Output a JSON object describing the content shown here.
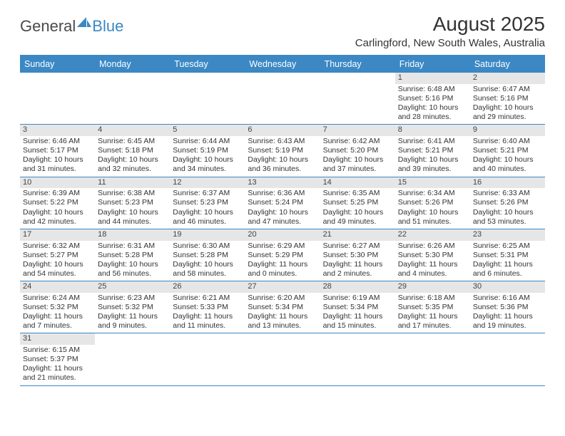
{
  "brand": {
    "part1": "General",
    "part2": "Blue",
    "logo_color": "#3b88c4",
    "text_color": "#4a4a4a"
  },
  "title": "August 2025",
  "location": "Carlingford, New South Wales, Australia",
  "colors": {
    "header_bg": "#3b88c4",
    "header_text": "#ffffff",
    "border": "#3b88c4",
    "daynum_bg": "#e6e6e6",
    "text": "#333333"
  },
  "day_headers": [
    "Sunday",
    "Monday",
    "Tuesday",
    "Wednesday",
    "Thursday",
    "Friday",
    "Saturday"
  ],
  "weeks": [
    [
      {
        "empty": true
      },
      {
        "empty": true
      },
      {
        "empty": true
      },
      {
        "empty": true
      },
      {
        "empty": true
      },
      {
        "n": "1",
        "sunrise": "Sunrise: 6:48 AM",
        "sunset": "Sunset: 5:16 PM",
        "day1": "Daylight: 10 hours",
        "day2": "and 28 minutes."
      },
      {
        "n": "2",
        "sunrise": "Sunrise: 6:47 AM",
        "sunset": "Sunset: 5:16 PM",
        "day1": "Daylight: 10 hours",
        "day2": "and 29 minutes."
      }
    ],
    [
      {
        "n": "3",
        "sunrise": "Sunrise: 6:46 AM",
        "sunset": "Sunset: 5:17 PM",
        "day1": "Daylight: 10 hours",
        "day2": "and 31 minutes."
      },
      {
        "n": "4",
        "sunrise": "Sunrise: 6:45 AM",
        "sunset": "Sunset: 5:18 PM",
        "day1": "Daylight: 10 hours",
        "day2": "and 32 minutes."
      },
      {
        "n": "5",
        "sunrise": "Sunrise: 6:44 AM",
        "sunset": "Sunset: 5:19 PM",
        "day1": "Daylight: 10 hours",
        "day2": "and 34 minutes."
      },
      {
        "n": "6",
        "sunrise": "Sunrise: 6:43 AM",
        "sunset": "Sunset: 5:19 PM",
        "day1": "Daylight: 10 hours",
        "day2": "and 36 minutes."
      },
      {
        "n": "7",
        "sunrise": "Sunrise: 6:42 AM",
        "sunset": "Sunset: 5:20 PM",
        "day1": "Daylight: 10 hours",
        "day2": "and 37 minutes."
      },
      {
        "n": "8",
        "sunrise": "Sunrise: 6:41 AM",
        "sunset": "Sunset: 5:21 PM",
        "day1": "Daylight: 10 hours",
        "day2": "and 39 minutes."
      },
      {
        "n": "9",
        "sunrise": "Sunrise: 6:40 AM",
        "sunset": "Sunset: 5:21 PM",
        "day1": "Daylight: 10 hours",
        "day2": "and 40 minutes."
      }
    ],
    [
      {
        "n": "10",
        "sunrise": "Sunrise: 6:39 AM",
        "sunset": "Sunset: 5:22 PM",
        "day1": "Daylight: 10 hours",
        "day2": "and 42 minutes."
      },
      {
        "n": "11",
        "sunrise": "Sunrise: 6:38 AM",
        "sunset": "Sunset: 5:23 PM",
        "day1": "Daylight: 10 hours",
        "day2": "and 44 minutes."
      },
      {
        "n": "12",
        "sunrise": "Sunrise: 6:37 AM",
        "sunset": "Sunset: 5:23 PM",
        "day1": "Daylight: 10 hours",
        "day2": "and 46 minutes."
      },
      {
        "n": "13",
        "sunrise": "Sunrise: 6:36 AM",
        "sunset": "Sunset: 5:24 PM",
        "day1": "Daylight: 10 hours",
        "day2": "and 47 minutes."
      },
      {
        "n": "14",
        "sunrise": "Sunrise: 6:35 AM",
        "sunset": "Sunset: 5:25 PM",
        "day1": "Daylight: 10 hours",
        "day2": "and 49 minutes."
      },
      {
        "n": "15",
        "sunrise": "Sunrise: 6:34 AM",
        "sunset": "Sunset: 5:26 PM",
        "day1": "Daylight: 10 hours",
        "day2": "and 51 minutes."
      },
      {
        "n": "16",
        "sunrise": "Sunrise: 6:33 AM",
        "sunset": "Sunset: 5:26 PM",
        "day1": "Daylight: 10 hours",
        "day2": "and 53 minutes."
      }
    ],
    [
      {
        "n": "17",
        "sunrise": "Sunrise: 6:32 AM",
        "sunset": "Sunset: 5:27 PM",
        "day1": "Daylight: 10 hours",
        "day2": "and 54 minutes."
      },
      {
        "n": "18",
        "sunrise": "Sunrise: 6:31 AM",
        "sunset": "Sunset: 5:28 PM",
        "day1": "Daylight: 10 hours",
        "day2": "and 56 minutes."
      },
      {
        "n": "19",
        "sunrise": "Sunrise: 6:30 AM",
        "sunset": "Sunset: 5:28 PM",
        "day1": "Daylight: 10 hours",
        "day2": "and 58 minutes."
      },
      {
        "n": "20",
        "sunrise": "Sunrise: 6:29 AM",
        "sunset": "Sunset: 5:29 PM",
        "day1": "Daylight: 11 hours",
        "day2": "and 0 minutes."
      },
      {
        "n": "21",
        "sunrise": "Sunrise: 6:27 AM",
        "sunset": "Sunset: 5:30 PM",
        "day1": "Daylight: 11 hours",
        "day2": "and 2 minutes."
      },
      {
        "n": "22",
        "sunrise": "Sunrise: 6:26 AM",
        "sunset": "Sunset: 5:30 PM",
        "day1": "Daylight: 11 hours",
        "day2": "and 4 minutes."
      },
      {
        "n": "23",
        "sunrise": "Sunrise: 6:25 AM",
        "sunset": "Sunset: 5:31 PM",
        "day1": "Daylight: 11 hours",
        "day2": "and 6 minutes."
      }
    ],
    [
      {
        "n": "24",
        "sunrise": "Sunrise: 6:24 AM",
        "sunset": "Sunset: 5:32 PM",
        "day1": "Daylight: 11 hours",
        "day2": "and 7 minutes."
      },
      {
        "n": "25",
        "sunrise": "Sunrise: 6:23 AM",
        "sunset": "Sunset: 5:32 PM",
        "day1": "Daylight: 11 hours",
        "day2": "and 9 minutes."
      },
      {
        "n": "26",
        "sunrise": "Sunrise: 6:21 AM",
        "sunset": "Sunset: 5:33 PM",
        "day1": "Daylight: 11 hours",
        "day2": "and 11 minutes."
      },
      {
        "n": "27",
        "sunrise": "Sunrise: 6:20 AM",
        "sunset": "Sunset: 5:34 PM",
        "day1": "Daylight: 11 hours",
        "day2": "and 13 minutes."
      },
      {
        "n": "28",
        "sunrise": "Sunrise: 6:19 AM",
        "sunset": "Sunset: 5:34 PM",
        "day1": "Daylight: 11 hours",
        "day2": "and 15 minutes."
      },
      {
        "n": "29",
        "sunrise": "Sunrise: 6:18 AM",
        "sunset": "Sunset: 5:35 PM",
        "day1": "Daylight: 11 hours",
        "day2": "and 17 minutes."
      },
      {
        "n": "30",
        "sunrise": "Sunrise: 6:16 AM",
        "sunset": "Sunset: 5:36 PM",
        "day1": "Daylight: 11 hours",
        "day2": "and 19 minutes."
      }
    ],
    [
      {
        "n": "31",
        "sunrise": "Sunrise: 6:15 AM",
        "sunset": "Sunset: 5:37 PM",
        "day1": "Daylight: 11 hours",
        "day2": "and 21 minutes."
      },
      {
        "empty": true
      },
      {
        "empty": true
      },
      {
        "empty": true
      },
      {
        "empty": true
      },
      {
        "empty": true
      },
      {
        "empty": true
      }
    ]
  ]
}
